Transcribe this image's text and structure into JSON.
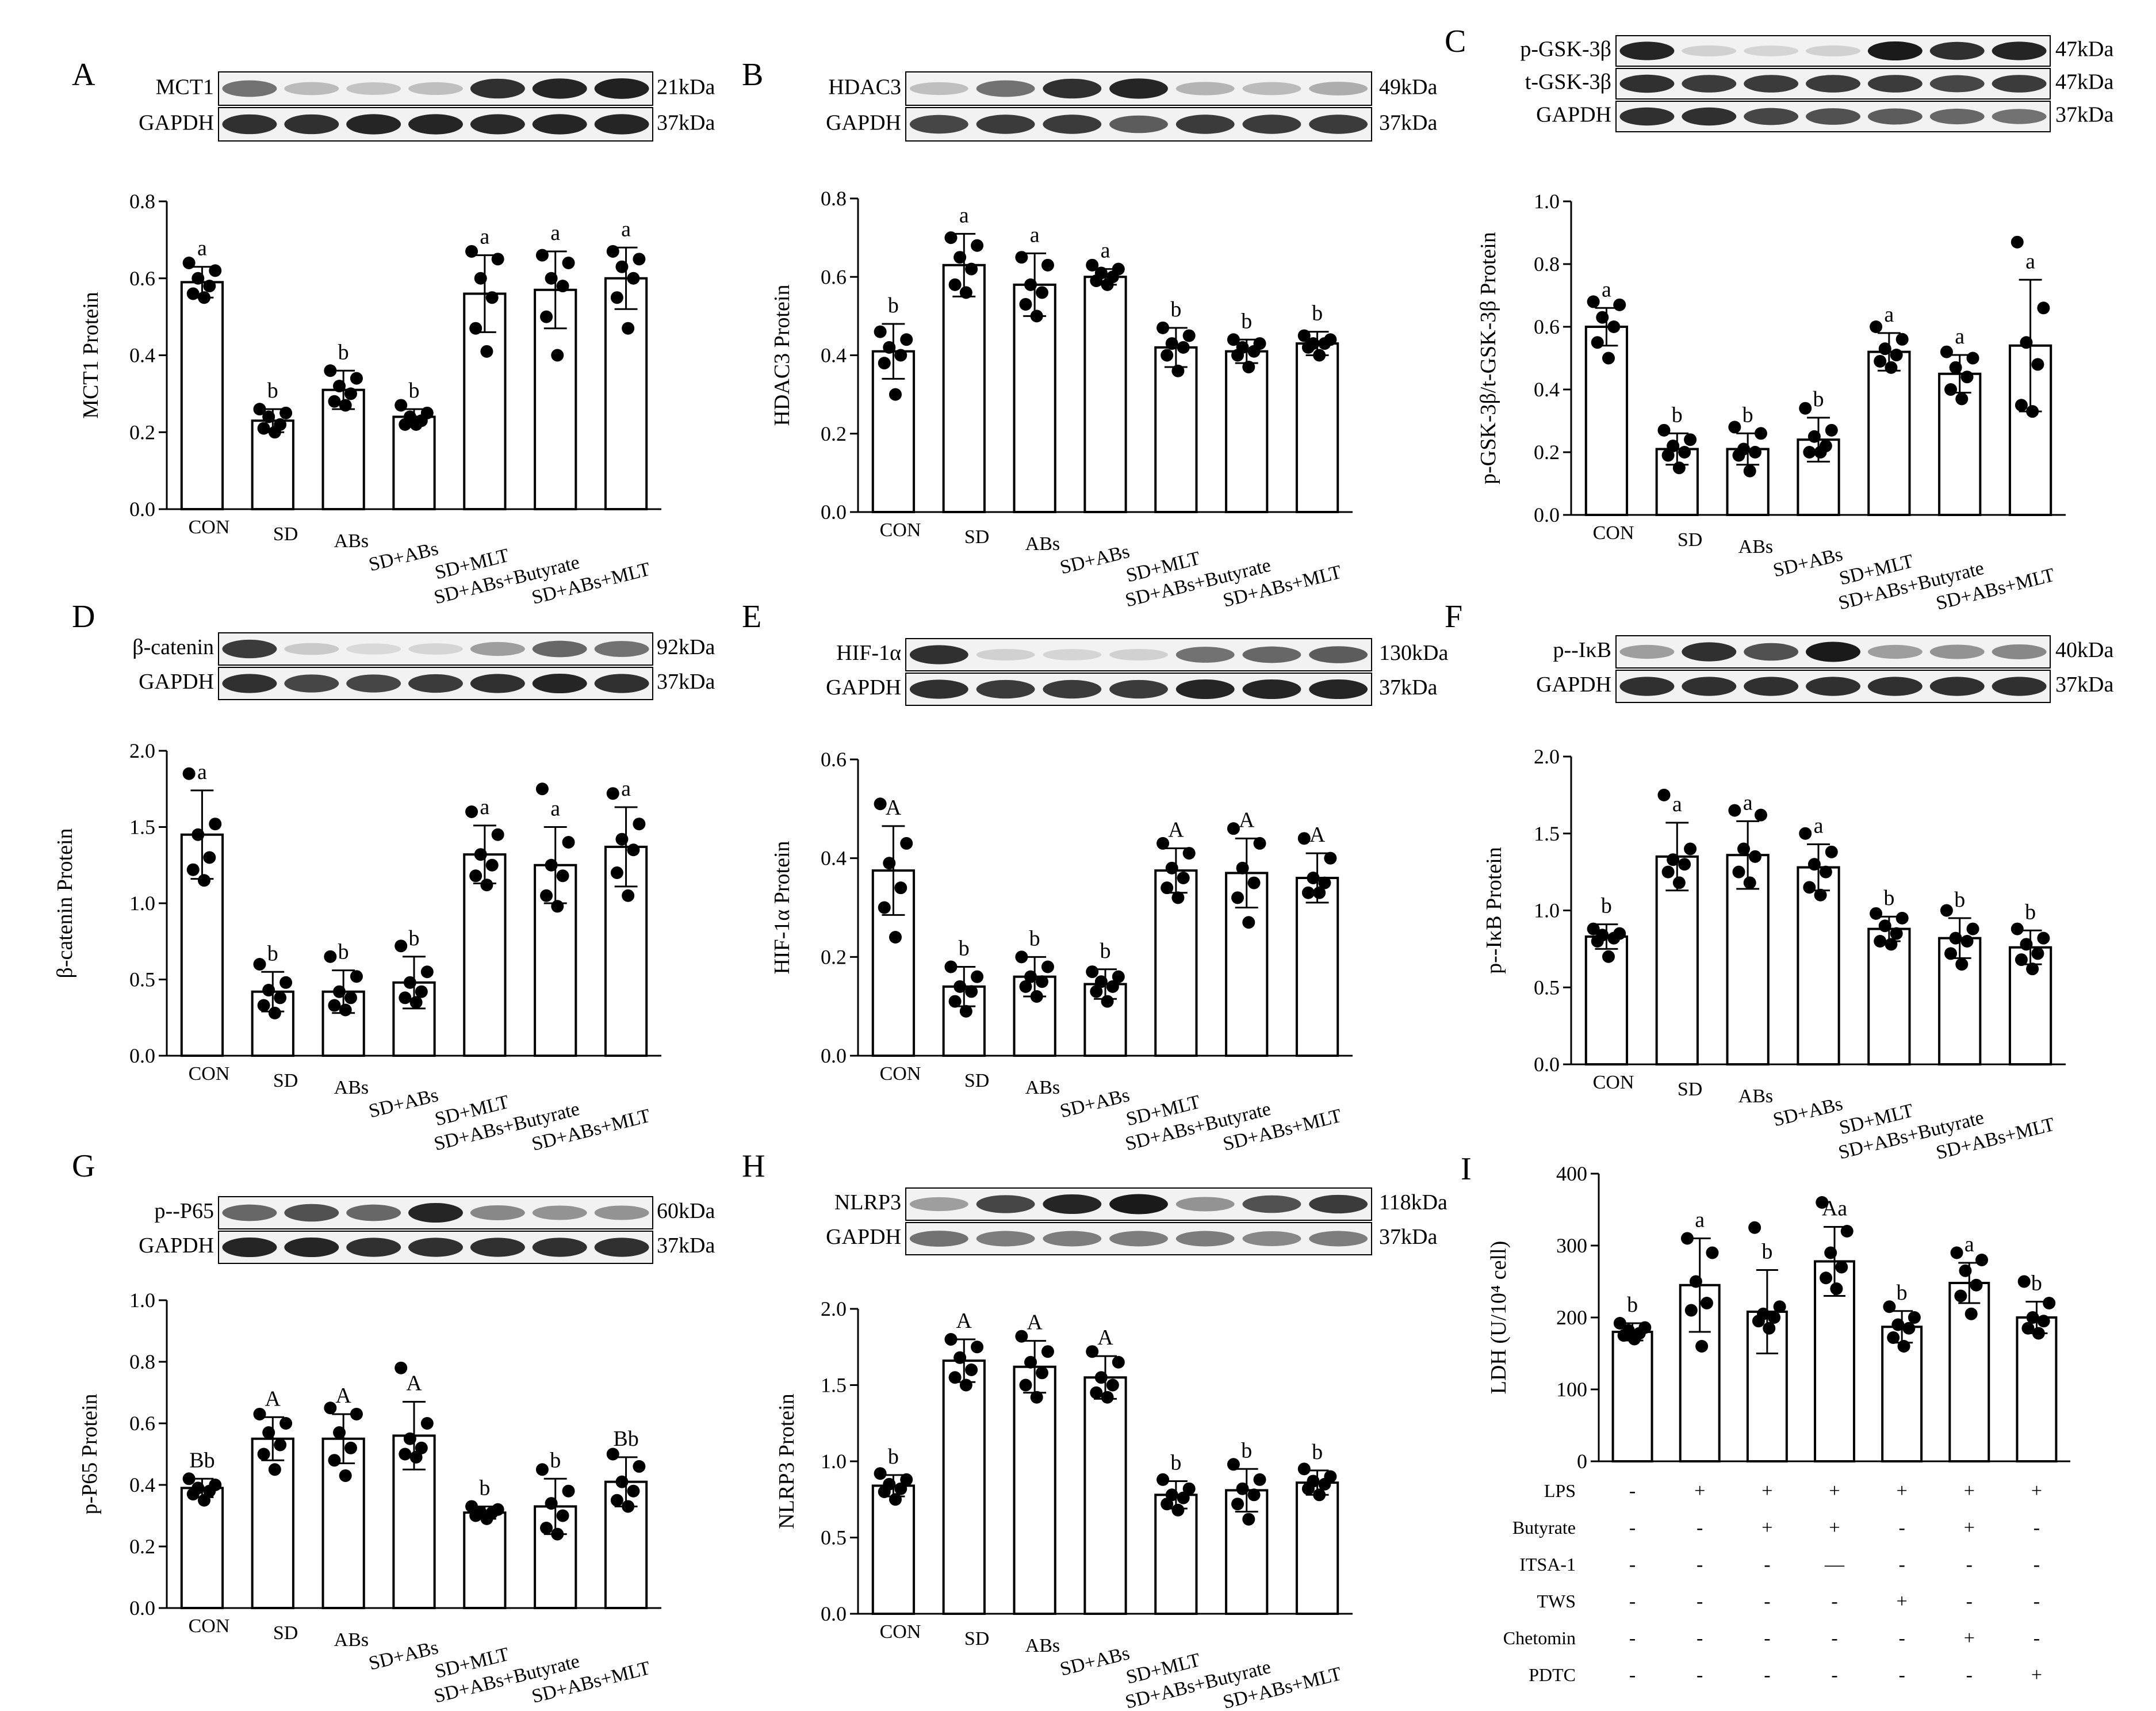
{
  "panels": [
    {
      "letter": "A",
      "blots": [
        {
          "label": "MCT1",
          "size": "21kDa",
          "intensities": [
            0.55,
            0.22,
            0.18,
            0.2,
            0.85,
            0.9,
            0.92
          ]
        },
        {
          "label": "GAPDH",
          "size": "37kDa",
          "intensities": [
            0.85,
            0.85,
            0.9,
            0.9,
            0.88,
            0.9,
            0.9
          ]
        }
      ]
    },
    {
      "letter": "B",
      "blots": [
        {
          "label": "HDAC3",
          "size": "49kDa",
          "intensities": [
            0.2,
            0.55,
            0.85,
            0.9,
            0.25,
            0.22,
            0.28
          ]
        },
        {
          "label": "GAPDH",
          "size": "37kDa",
          "intensities": [
            0.75,
            0.8,
            0.8,
            0.65,
            0.8,
            0.8,
            0.8
          ]
        }
      ]
    },
    {
      "letter": "C",
      "blots": [
        {
          "label": "p-GSK-3β",
          "size": "47kDa",
          "intensities": [
            0.9,
            0.12,
            0.1,
            0.12,
            0.95,
            0.85,
            0.9
          ]
        },
        {
          "label": "t-GSK-3β",
          "size": "47kDa",
          "intensities": [
            0.85,
            0.8,
            0.8,
            0.8,
            0.8,
            0.75,
            0.8
          ]
        },
        {
          "label": "GAPDH",
          "size": "37kDa",
          "intensities": [
            0.85,
            0.85,
            0.75,
            0.7,
            0.65,
            0.6,
            0.55
          ]
        }
      ]
    },
    {
      "letter": "D",
      "blots": [
        {
          "label": "β-catenin",
          "size": "92kDa",
          "intensities": [
            0.8,
            0.15,
            0.08,
            0.1,
            0.35,
            0.6,
            0.55
          ]
        },
        {
          "label": "GAPDH",
          "size": "37kDa",
          "intensities": [
            0.85,
            0.75,
            0.75,
            0.8,
            0.85,
            0.9,
            0.85
          ]
        }
      ]
    },
    {
      "letter": "E",
      "blots": [
        {
          "label": "HIF-1α",
          "size": "130kDa",
          "intensities": [
            0.85,
            0.12,
            0.1,
            0.12,
            0.55,
            0.6,
            0.65
          ]
        },
        {
          "label": "GAPDH",
          "size": "37kDa",
          "intensities": [
            0.85,
            0.8,
            0.8,
            0.8,
            0.9,
            0.9,
            0.9
          ]
        }
      ]
    },
    {
      "letter": "F",
      "blots": [
        {
          "label": "p--IκB",
          "size": "40kDa",
          "intensities": [
            0.35,
            0.85,
            0.7,
            0.95,
            0.35,
            0.4,
            0.45
          ]
        },
        {
          "label": "GAPDH",
          "size": "37kDa",
          "intensities": [
            0.85,
            0.85,
            0.85,
            0.85,
            0.85,
            0.85,
            0.85
          ]
        }
      ]
    },
    {
      "letter": "G",
      "blots": [
        {
          "label": "p--P65",
          "size": "60kDa",
          "intensities": [
            0.6,
            0.7,
            0.6,
            0.9,
            0.45,
            0.4,
            0.4
          ]
        },
        {
          "label": "GAPDH",
          "size": "37kDa",
          "intensities": [
            0.9,
            0.9,
            0.85,
            0.85,
            0.85,
            0.85,
            0.85
          ]
        }
      ]
    },
    {
      "letter": "H",
      "blots": [
        {
          "label": "NLRP3",
          "size": "118kDa",
          "intensities": [
            0.35,
            0.75,
            0.9,
            0.95,
            0.4,
            0.7,
            0.8
          ]
        },
        {
          "label": "GAPDH",
          "size": "37kDa",
          "intensities": [
            0.55,
            0.5,
            0.5,
            0.5,
            0.5,
            0.45,
            0.5
          ]
        }
      ]
    },
    {
      "letter": "I",
      "blots": []
    }
  ],
  "chart_data": [
    {
      "type": "bar",
      "ylabel": "MCT1 Protein",
      "ylim": [
        0,
        0.8
      ],
      "yticks": [
        "0.0",
        "0.2",
        "0.4",
        "0.6",
        "0.8"
      ],
      "categories": [
        "CON",
        "SD",
        "ABs",
        "SD+ABs",
        "SD+MLT",
        "SD+ABs+Butyrate",
        "SD+ABs+MLT"
      ],
      "values": [
        0.59,
        0.23,
        0.31,
        0.24,
        0.56,
        0.57,
        0.6
      ],
      "errors": [
        0.04,
        0.03,
        0.05,
        0.02,
        0.1,
        0.1,
        0.08
      ],
      "letters": [
        "a",
        "b",
        "b",
        "b",
        "a",
        "a",
        "a"
      ],
      "points": [
        [
          0.64,
          0.62,
          0.6,
          0.58,
          0.56,
          0.55
        ],
        [
          0.26,
          0.25,
          0.24,
          0.22,
          0.21,
          0.2
        ],
        [
          0.36,
          0.34,
          0.32,
          0.3,
          0.28,
          0.27
        ],
        [
          0.27,
          0.25,
          0.24,
          0.23,
          0.22,
          0.22
        ],
        [
          0.67,
          0.65,
          0.6,
          0.55,
          0.47,
          0.41
        ],
        [
          0.66,
          0.64,
          0.6,
          0.58,
          0.5,
          0.4
        ],
        [
          0.67,
          0.65,
          0.63,
          0.6,
          0.55,
          0.47
        ]
      ]
    },
    {
      "type": "bar",
      "ylabel": "HDAC3 Protein",
      "ylim": [
        0,
        0.8
      ],
      "yticks": [
        "0.0",
        "0.2",
        "0.4",
        "0.6",
        "0.8"
      ],
      "categories": [
        "CON",
        "SD",
        "ABs",
        "SD+ABs",
        "SD+MLT",
        "SD+ABs+Butyrate",
        "SD+ABs+MLT"
      ],
      "values": [
        0.41,
        0.63,
        0.58,
        0.6,
        0.42,
        0.41,
        0.43
      ],
      "errors": [
        0.07,
        0.08,
        0.08,
        0.02,
        0.05,
        0.03,
        0.03
      ],
      "letters": [
        "b",
        "a",
        "a",
        "a",
        "b",
        "b",
        "b"
      ],
      "points": [
        [
          0.46,
          0.44,
          0.42,
          0.4,
          0.38,
          0.3
        ],
        [
          0.7,
          0.68,
          0.65,
          0.62,
          0.58,
          0.56
        ],
        [
          0.65,
          0.63,
          0.58,
          0.56,
          0.53,
          0.5
        ],
        [
          0.63,
          0.62,
          0.61,
          0.6,
          0.59,
          0.58
        ],
        [
          0.47,
          0.45,
          0.43,
          0.42,
          0.4,
          0.36
        ],
        [
          0.44,
          0.43,
          0.42,
          0.41,
          0.4,
          0.37
        ],
        [
          0.45,
          0.44,
          0.43,
          0.43,
          0.42,
          0.4
        ]
      ]
    },
    {
      "type": "bar",
      "ylabel": "p-GSK-3β/t-GSK-3β Protein",
      "ylim": [
        0,
        1.0
      ],
      "yticks": [
        "0.0",
        "0.2",
        "0.4",
        "0.6",
        "0.8",
        "1.0"
      ],
      "categories": [
        "CON",
        "SD",
        "ABs",
        "SD+ABs",
        "SD+MLT",
        "SD+ABs+Butyrate",
        "SD+ABs+MLT"
      ],
      "values": [
        0.6,
        0.21,
        0.21,
        0.24,
        0.52,
        0.45,
        0.54
      ],
      "errors": [
        0.06,
        0.05,
        0.05,
        0.07,
        0.06,
        0.06,
        0.21
      ],
      "letters": [
        "a",
        "b",
        "b",
        "b",
        "a",
        "a",
        "a"
      ],
      "points": [
        [
          0.68,
          0.67,
          0.63,
          0.6,
          0.55,
          0.5
        ],
        [
          0.27,
          0.24,
          0.22,
          0.2,
          0.19,
          0.15
        ],
        [
          0.28,
          0.26,
          0.21,
          0.2,
          0.19,
          0.14
        ],
        [
          0.34,
          0.27,
          0.25,
          0.22,
          0.2,
          0.2
        ],
        [
          0.6,
          0.56,
          0.53,
          0.51,
          0.49,
          0.47
        ],
        [
          0.52,
          0.5,
          0.47,
          0.44,
          0.4,
          0.37
        ],
        [
          0.87,
          0.66,
          0.55,
          0.48,
          0.35,
          0.33
        ]
      ]
    },
    {
      "type": "bar",
      "ylabel": "β-catenin Protein",
      "ylim": [
        0,
        2.0
      ],
      "yticks": [
        "0.0",
        "0.5",
        "1.0",
        "1.5",
        "2.0"
      ],
      "categories": [
        "CON",
        "SD",
        "ABs",
        "SD+ABs",
        "SD+MLT",
        "SD+ABs+Butyrate",
        "SD+ABs+MLT"
      ],
      "values": [
        1.45,
        0.42,
        0.42,
        0.48,
        1.32,
        1.25,
        1.37
      ],
      "errors": [
        0.29,
        0.13,
        0.14,
        0.17,
        0.19,
        0.25,
        0.26
      ],
      "letters": [
        "a",
        "b",
        "b",
        "b",
        "a",
        "a",
        "a"
      ],
      "points": [
        [
          1.85,
          1.52,
          1.45,
          1.3,
          1.22,
          1.15
        ],
        [
          0.6,
          0.48,
          0.43,
          0.38,
          0.33,
          0.28
        ],
        [
          0.65,
          0.52,
          0.42,
          0.38,
          0.33,
          0.3
        ],
        [
          0.72,
          0.55,
          0.48,
          0.42,
          0.38,
          0.35
        ],
        [
          1.6,
          1.45,
          1.32,
          1.25,
          1.18,
          1.12
        ],
        [
          1.75,
          1.4,
          1.25,
          1.18,
          1.05,
          0.98
        ],
        [
          1.72,
          1.52,
          1.42,
          1.35,
          1.2,
          1.05
        ]
      ]
    },
    {
      "type": "bar",
      "ylabel": "HIF-1α Protein",
      "ylim": [
        0,
        0.6
      ],
      "yticks": [
        "0.0",
        "0.2",
        "0.4",
        "0.6"
      ],
      "categories": [
        "CON",
        "SD",
        "ABs",
        "SD+ABs",
        "SD+MLT",
        "SD+ABs+Butyrate",
        "SD+ABs+MLT"
      ],
      "values": [
        0.375,
        0.14,
        0.16,
        0.145,
        0.375,
        0.37,
        0.36
      ],
      "errors": [
        0.09,
        0.04,
        0.04,
        0.03,
        0.045,
        0.07,
        0.05
      ],
      "letters": [
        "A",
        "b",
        "b",
        "b",
        "A",
        "A",
        "A"
      ],
      "points": [
        [
          0.51,
          0.43,
          0.39,
          0.34,
          0.3,
          0.24
        ],
        [
          0.18,
          0.16,
          0.14,
          0.13,
          0.11,
          0.09
        ],
        [
          0.2,
          0.18,
          0.16,
          0.15,
          0.14,
          0.12
        ],
        [
          0.17,
          0.16,
          0.15,
          0.14,
          0.13,
          0.11
        ],
        [
          0.43,
          0.41,
          0.38,
          0.36,
          0.34,
          0.32
        ],
        [
          0.46,
          0.43,
          0.38,
          0.35,
          0.32,
          0.27
        ],
        [
          0.44,
          0.4,
          0.36,
          0.35,
          0.33,
          0.33
        ]
      ]
    },
    {
      "type": "bar",
      "ylabel": "p--IκB Protein",
      "ylim": [
        0,
        2.0
      ],
      "yticks": [
        "0.0",
        "0.5",
        "1.0",
        "1.5",
        "2.0"
      ],
      "categories": [
        "CON",
        "SD",
        "ABs",
        "SD+ABs",
        "SD+MLT",
        "SD+ABs+Butyrate",
        "SD+ABs+MLT"
      ],
      "values": [
        0.83,
        1.35,
        1.36,
        1.28,
        0.88,
        0.82,
        0.76
      ],
      "errors": [
        0.08,
        0.22,
        0.22,
        0.15,
        0.08,
        0.13,
        0.11
      ],
      "letters": [
        "b",
        "a",
        "a",
        "a",
        "b",
        "b",
        "b"
      ],
      "points": [
        [
          0.88,
          0.85,
          0.84,
          0.82,
          0.8,
          0.7
        ],
        [
          1.75,
          1.4,
          1.33,
          1.3,
          1.25,
          1.18
        ],
        [
          1.65,
          1.62,
          1.4,
          1.35,
          1.25,
          1.18
        ],
        [
          1.5,
          1.38,
          1.3,
          1.25,
          1.15,
          1.1
        ],
        [
          0.98,
          0.95,
          0.9,
          0.85,
          0.8,
          0.78
        ],
        [
          1.0,
          0.88,
          0.82,
          0.8,
          0.72,
          0.65
        ],
        [
          0.88,
          0.82,
          0.78,
          0.72,
          0.68,
          0.62
        ]
      ]
    },
    {
      "type": "bar",
      "ylabel": "p-P65 Protein",
      "ylim": [
        0,
        1.0
      ],
      "yticks": [
        "0.0",
        "0.2",
        "0.4",
        "0.6",
        "0.8",
        "1.0"
      ],
      "categories": [
        "CON",
        "SD",
        "ABs",
        "SD+ABs",
        "SD+MLT",
        "SD+ABs+Butyrate",
        "SD+ABs+MLT"
      ],
      "values": [
        0.39,
        0.55,
        0.55,
        0.56,
        0.31,
        0.33,
        0.41
      ],
      "errors": [
        0.03,
        0.07,
        0.08,
        0.11,
        0.02,
        0.09,
        0.08
      ],
      "letters": [
        "Bb",
        "A",
        "A",
        "A",
        "b",
        "b",
        "Bb"
      ],
      "points": [
        [
          0.42,
          0.4,
          0.39,
          0.38,
          0.37,
          0.35
        ],
        [
          0.63,
          0.6,
          0.57,
          0.53,
          0.5,
          0.45
        ],
        [
          0.65,
          0.63,
          0.57,
          0.52,
          0.48,
          0.43
        ],
        [
          0.78,
          0.6,
          0.55,
          0.52,
          0.5,
          0.49
        ],
        [
          0.33,
          0.32,
          0.31,
          0.31,
          0.3,
          0.29
        ],
        [
          0.45,
          0.38,
          0.34,
          0.3,
          0.26,
          0.24
        ],
        [
          0.5,
          0.46,
          0.41,
          0.38,
          0.35,
          0.33
        ]
      ]
    },
    {
      "type": "bar",
      "ylabel": "NLRP3 Protein",
      "ylim": [
        0,
        2.0
      ],
      "yticks": [
        "0.0",
        "0.5",
        "1.0",
        "1.5",
        "2.0"
      ],
      "categories": [
        "CON",
        "SD",
        "ABs",
        "SD+ABs",
        "SD+MLT",
        "SD+ABs+Butyrate",
        "SD+ABs+MLT"
      ],
      "values": [
        0.84,
        1.66,
        1.62,
        1.55,
        0.78,
        0.81,
        0.86
      ],
      "errors": [
        0.07,
        0.14,
        0.17,
        0.14,
        0.09,
        0.14,
        0.08
      ],
      "letters": [
        "b",
        "A",
        "A",
        "A",
        "b",
        "b",
        "b"
      ],
      "points": [
        [
          0.92,
          0.88,
          0.85,
          0.82,
          0.8,
          0.75
        ],
        [
          1.8,
          1.75,
          1.68,
          1.6,
          1.55,
          1.5
        ],
        [
          1.82,
          1.72,
          1.65,
          1.58,
          1.5,
          1.42
        ],
        [
          1.72,
          1.65,
          1.55,
          1.5,
          1.45,
          1.42
        ],
        [
          0.88,
          0.82,
          0.78,
          0.76,
          0.72,
          0.68
        ],
        [
          0.98,
          0.88,
          0.82,
          0.78,
          0.72,
          0.62
        ],
        [
          0.95,
          0.9,
          0.87,
          0.85,
          0.82,
          0.78
        ]
      ]
    },
    {
      "type": "bar",
      "ylabel": "LDH (U/10⁴ cell)",
      "ylim": [
        0,
        400
      ],
      "yticks": [
        "0",
        "100",
        "200",
        "300",
        "400"
      ],
      "categories": [
        "",
        "",
        "",
        "",
        "",
        "",
        ""
      ],
      "values": [
        180,
        245,
        208,
        278,
        187,
        248,
        200
      ],
      "errors": [
        12,
        65,
        58,
        48,
        22,
        28,
        22
      ],
      "letters": [
        "b",
        "a",
        "b",
        "Aa",
        "b",
        "a",
        "b"
      ],
      "points": [
        [
          192,
          186,
          182,
          178,
          175,
          170
        ],
        [
          310,
          290,
          250,
          220,
          210,
          160
        ],
        [
          325,
          215,
          205,
          200,
          195,
          185
        ],
        [
          360,
          320,
          290,
          270,
          255,
          240
        ],
        [
          215,
          200,
          190,
          185,
          172,
          160
        ],
        [
          290,
          280,
          265,
          245,
          230,
          205
        ],
        [
          250,
          220,
          200,
          195,
          185,
          178
        ]
      ],
      "treatment_rows": [
        {
          "label": "LPS",
          "signs": [
            "-",
            "+",
            "+",
            "+",
            "+",
            "+",
            "+"
          ]
        },
        {
          "label": "Butyrate",
          "signs": [
            "-",
            "-",
            "+",
            "+",
            "-",
            "+",
            "-"
          ]
        },
        {
          "label": "ITSA-1",
          "signs": [
            "-",
            "-",
            "-",
            "—",
            "-",
            "-",
            "-"
          ]
        },
        {
          "label": "TWS",
          "signs": [
            "-",
            "-",
            "-",
            "-",
            "+",
            "-",
            "-"
          ]
        },
        {
          "label": "Chetomin",
          "signs": [
            "-",
            "-",
            "-",
            "-",
            "-",
            "+",
            "-"
          ]
        },
        {
          "label": "PDTC",
          "signs": [
            "-",
            "-",
            "-",
            "-",
            "-",
            "-",
            "+"
          ]
        }
      ]
    }
  ]
}
